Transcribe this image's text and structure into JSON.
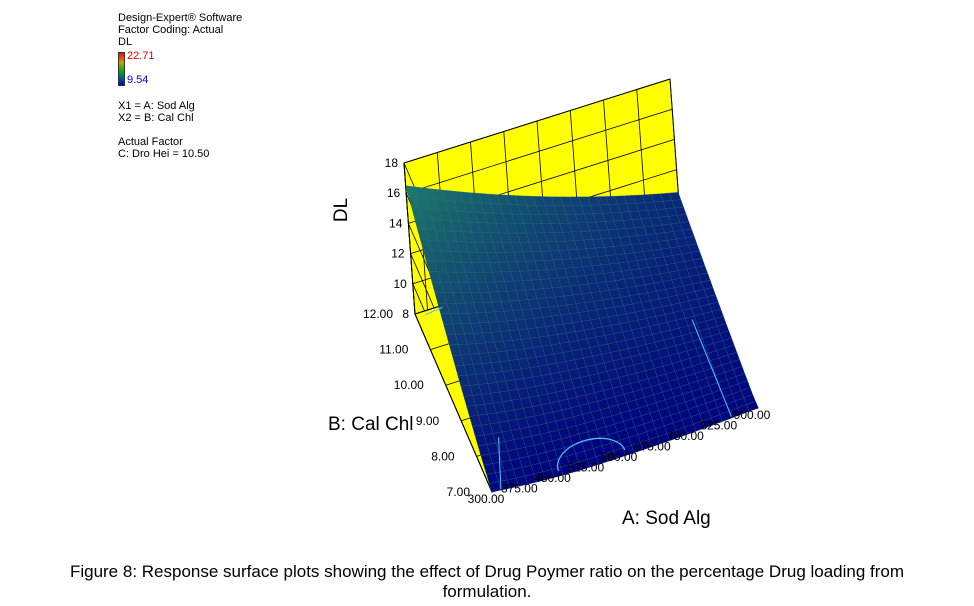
{
  "legend": {
    "software": "Design-Expert® Software",
    "coding": "Factor Coding: Actual",
    "response": "DL",
    "colorbar_max": "22.71",
    "colorbar_min": "9.54",
    "x1": "X1 = A: Sod Alg",
    "x2": "X2 = B: Cal Chl",
    "actual_factor_title": "Actual Factor",
    "actual_factor": "C: Dro Hei = 10.50"
  },
  "caption": {
    "line1": "Figure  8: Response surface plots showing the effect of Drug Poymer ratio on the percentage Drug loading from",
    "line2": "formulation."
  },
  "chart_data": {
    "type": "surface",
    "zlabel": "DL",
    "xlabel": "A: Sod Alg",
    "ylabel": "B: Cal Chl",
    "x_ticks": [
      "300.00",
      "375.00",
      "450.00",
      "525.00",
      "600.00",
      "675.00",
      "750.00",
      "825.00",
      "900.00"
    ],
    "y_ticks": [
      "7.00",
      "8.00",
      "9.00",
      "10.00",
      "11.00",
      "12.00"
    ],
    "z_ticks": [
      "8",
      "10",
      "12",
      "14",
      "16",
      "18"
    ],
    "xlim": [
      300,
      900
    ],
    "ylim": [
      7,
      12
    ],
    "zlim": [
      8,
      18
    ],
    "corner_values": {
      "x300_y7": 8.0,
      "x900_y7": 8.0,
      "x300_y12": 16.5,
      "x900_y12": 10.5
    },
    "min_point": {
      "x": 525,
      "y": 7,
      "z": 7.6
    },
    "colors": {
      "walls": "#ffff00",
      "surface_low": "#000080",
      "surface_high": "#1e7a6a",
      "contour": "#4fc3f7"
    }
  }
}
